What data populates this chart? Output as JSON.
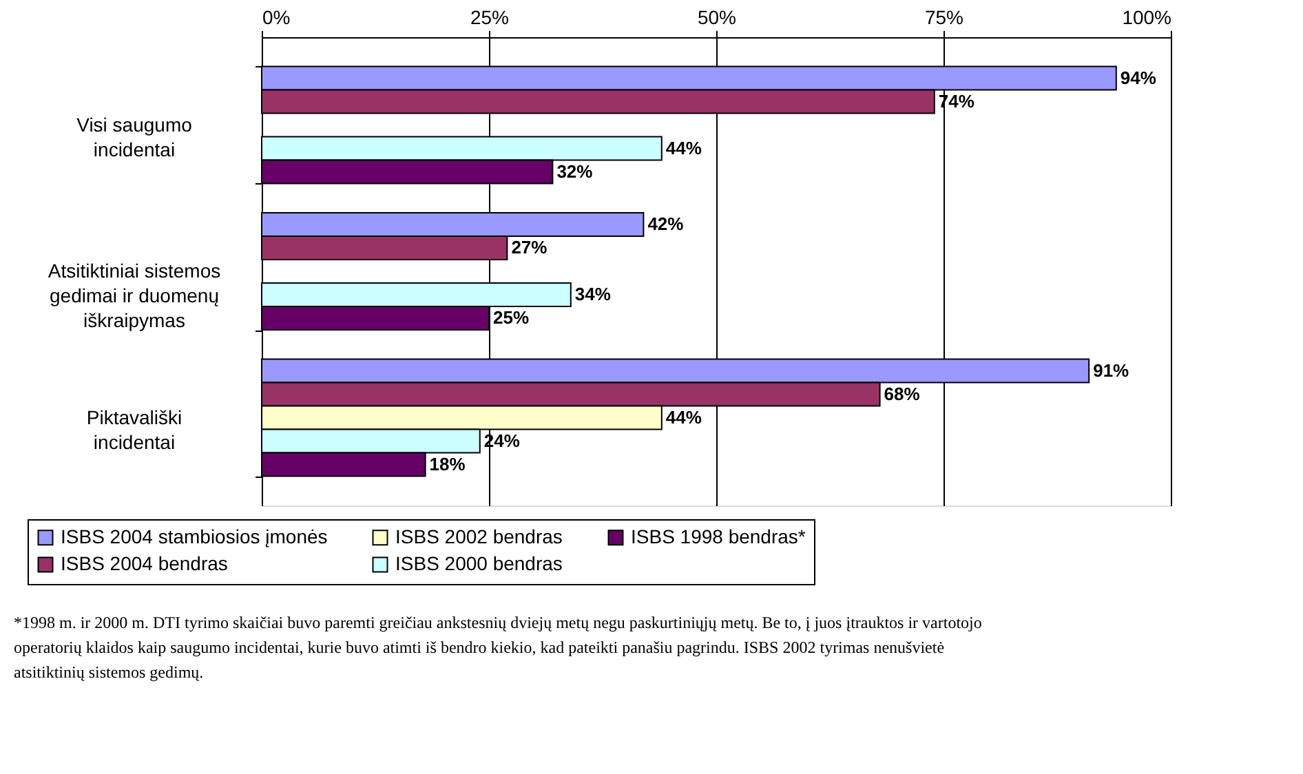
{
  "chart_data": {
    "type": "bar",
    "orientation": "horizontal",
    "categories": [
      "Visi saugumo incidentai",
      "Atsitiktiniai sistemos gedimai ir duomenų iškraipymas",
      "Piktavališki incidentai"
    ],
    "series": [
      {
        "name": "ISBS 2004 stambiosios įmonės",
        "color": "#9999ff",
        "values": [
          94,
          42,
          91
        ],
        "value_labels": [
          "94%",
          "42%",
          "91%"
        ]
      },
      {
        "name": "ISBS 2004 bendras",
        "color": "#993366",
        "values": [
          74,
          27,
          68
        ],
        "value_labels": [
          "74%",
          "27%",
          "68%"
        ]
      },
      {
        "name": "ISBS 2002 bendras",
        "color": "#ffffcc",
        "values": [
          null,
          null,
          44
        ],
        "value_labels": [
          null,
          null,
          "44%"
        ]
      },
      {
        "name": "ISBS 2000 bendras",
        "color": "#ccffff",
        "values": [
          44,
          34,
          24
        ],
        "value_labels": [
          "44%",
          "34%",
          "24%"
        ]
      },
      {
        "name": "ISBS 1998 bendras*",
        "color": "#660066",
        "values": [
          32,
          25,
          18
        ],
        "value_labels": [
          "32%",
          "25%",
          "18%"
        ]
      }
    ],
    "xlim": [
      0,
      100
    ],
    "xticks": [
      {
        "value": 0,
        "label": "0%"
      },
      {
        "value": 25,
        "label": "25%"
      },
      {
        "value": 50,
        "label": "50%"
      },
      {
        "value": 75,
        "label": "75%"
      },
      {
        "value": 100,
        "label": "100%"
      }
    ],
    "grid": "x",
    "legend": "bottom",
    "annotations": [
      "*1998 m. ir 2000 m. DTI tyrimo skaičiai buvo paremti greičiau ankstesnių dviejų metų negu paskurtiniųjų metų. Be to, į juos įtrauktos ir vartotojo operatorių klaidos kaip saugumo incidentai, kurie buvo atimti iš bendro kiekio, kad pateikti panašiu pagrindu. ISBS 2002 tyrimas nenušvietė atsitiktinių sistemos gedimų."
    ]
  }
}
